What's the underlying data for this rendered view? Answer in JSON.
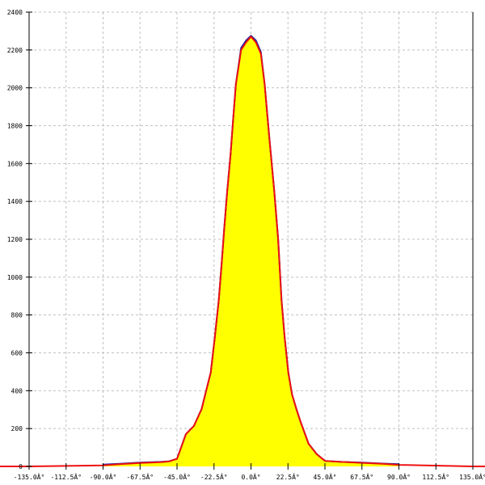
{
  "chart_data": {
    "type": "area",
    "title": "",
    "xlabel": "",
    "ylabel": "",
    "xlim": [
      -135,
      135
    ],
    "ylim": [
      0,
      2400
    ],
    "grid": true,
    "x_tick_labels": [
      "-135.0Â°",
      "-112.5Â°",
      "-90.0Â°",
      "-67.5Â°",
      "-45.0Â°",
      "-22.5Â°",
      "0.0Â°",
      "22.5Â°",
      "45.0Â°",
      "67.5Â°",
      "90.0Â°",
      "112.5Â°",
      "135.0Â°"
    ],
    "x_ticks": [
      -135,
      -112.5,
      -90,
      -67.5,
      -45,
      -22.5,
      0,
      22.5,
      45,
      67.5,
      90,
      112.5,
      135
    ],
    "y_ticks": [
      0,
      200,
      400,
      600,
      800,
      1000,
      1200,
      1400,
      1600,
      1800,
      2000,
      2200,
      2400
    ],
    "y_tick_labels": [
      "0",
      "200",
      "400",
      "600",
      "800",
      "1000",
      "1200",
      "1400",
      "1600",
      "1800",
      "2000",
      "2200",
      "2400"
    ],
    "colors": {
      "fill": "#ffff00",
      "measured_line": "#2020a0",
      "fit_line": "#ee1111",
      "grid": "#c0c0c0",
      "axis": "#000000"
    },
    "series": [
      {
        "x": [
          -90,
          -80,
          -67.5,
          -55,
          -50,
          -45,
          -39.6,
          -34.7,
          -30,
          -28.1,
          -24.5,
          -22,
          -19.6,
          -17.9,
          -16.3,
          -14.5,
          -12.5,
          -10.9,
          -9.2,
          -6,
          -3,
          0,
          3,
          6,
          8.3,
          11,
          14.2,
          16.5,
          18.6,
          20.5,
          22.7,
          25,
          27.6,
          30,
          35,
          40,
          45,
          55,
          67.5,
          80,
          90
        ],
        "y": [
          10,
          14,
          20,
          24,
          27,
          40,
          171,
          214,
          304,
          372,
          496,
          684,
          877,
          1065,
          1257,
          1450,
          1642,
          1826,
          2019,
          2211,
          2250,
          2275,
          2250,
          2190,
          2019,
          1750,
          1450,
          1200,
          877,
          680,
          496,
          380,
          304,
          240,
          120,
          65,
          29,
          24,
          20,
          15,
          12
        ]
      },
      {
        "x": [
          -135,
          -90,
          -80,
          -67.5,
          -55,
          -50,
          -45,
          -39.6,
          -34.7,
          -30,
          -28.1,
          -24.5,
          -22,
          -19.6,
          -17.9,
          -16.3,
          -14.5,
          -12.5,
          -10.9,
          -9.2,
          -6,
          -3,
          0,
          3,
          6,
          8.3,
          11,
          14.2,
          16.5,
          18.6,
          20.5,
          22.7,
          25,
          27.6,
          30,
          35,
          40,
          45,
          55,
          67.5,
          80,
          90,
          135
        ],
        "y": [
          0,
          5,
          12,
          18,
          22,
          26,
          40,
          171,
          214,
          304,
          372,
          496,
          684,
          877,
          1065,
          1257,
          1450,
          1642,
          1826,
          2019,
          2200,
          2240,
          2270,
          2240,
          2180,
          2019,
          1750,
          1450,
          1200,
          877,
          680,
          496,
          380,
          304,
          240,
          120,
          65,
          29,
          24,
          19,
          14,
          8,
          0
        ]
      }
    ]
  }
}
